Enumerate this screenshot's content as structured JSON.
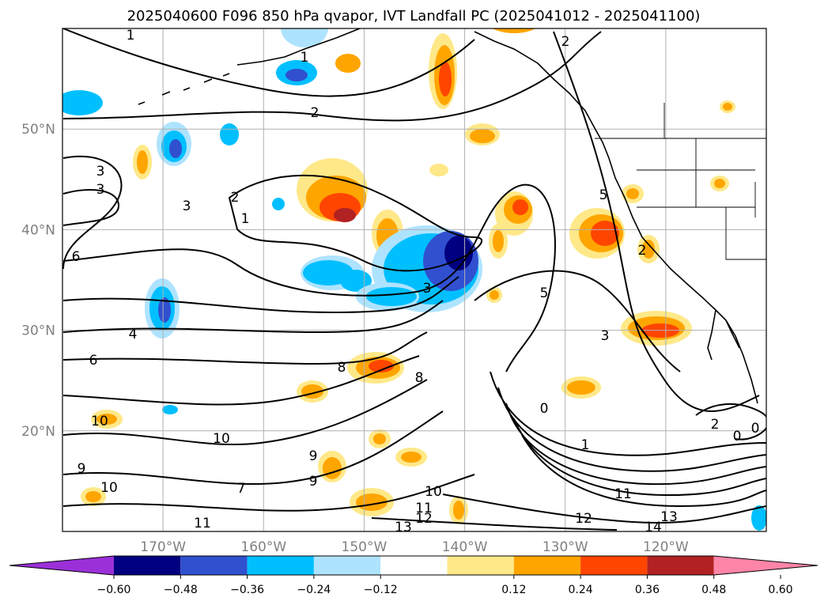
{
  "chart_data": {
    "type": "heatmap",
    "title": "2025040600 F096 850 hPa qvapor, IVT Landfall PC (2025041012 - 2025041100)",
    "map": {
      "lon_ticks": [
        "170°W",
        "160°W",
        "150°W",
        "140°W",
        "130°W",
        "120°W"
      ],
      "lat_ticks": [
        "50°N",
        "40°N",
        "30°N",
        "20°N"
      ],
      "lon_range": [
        -180,
        -110
      ],
      "lat_range": [
        10,
        60
      ],
      "grid": true
    },
    "colorbar": {
      "boundaries": [
        "-0.60",
        "-0.48",
        "-0.36",
        "-0.24",
        "-0.12",
        "0.12",
        "0.24",
        "0.36",
        "0.48",
        "0.60"
      ],
      "colors": [
        "#9b30d9",
        "#000080",
        "#3050d0",
        "#00bfff",
        "#aee3ff",
        "#ffffff",
        "#ffe888",
        "#ffa500",
        "#ff4500",
        "#b22222",
        "#ff85a8"
      ],
      "extend": "both"
    },
    "contour_labels": [
      "1",
      "1",
      "2",
      "2",
      "2",
      "1",
      "3",
      "3",
      "3",
      "5",
      "6",
      "4",
      "6",
      "8",
      "8",
      "3",
      "5",
      "2",
      "3",
      "10",
      "10",
      "9",
      "10",
      "9",
      "7",
      "9",
      "10",
      "11",
      "12",
      "13",
      "11",
      "0",
      "1",
      "11",
      "12",
      "13",
      "14",
      "2",
      "0",
      "0"
    ]
  }
}
